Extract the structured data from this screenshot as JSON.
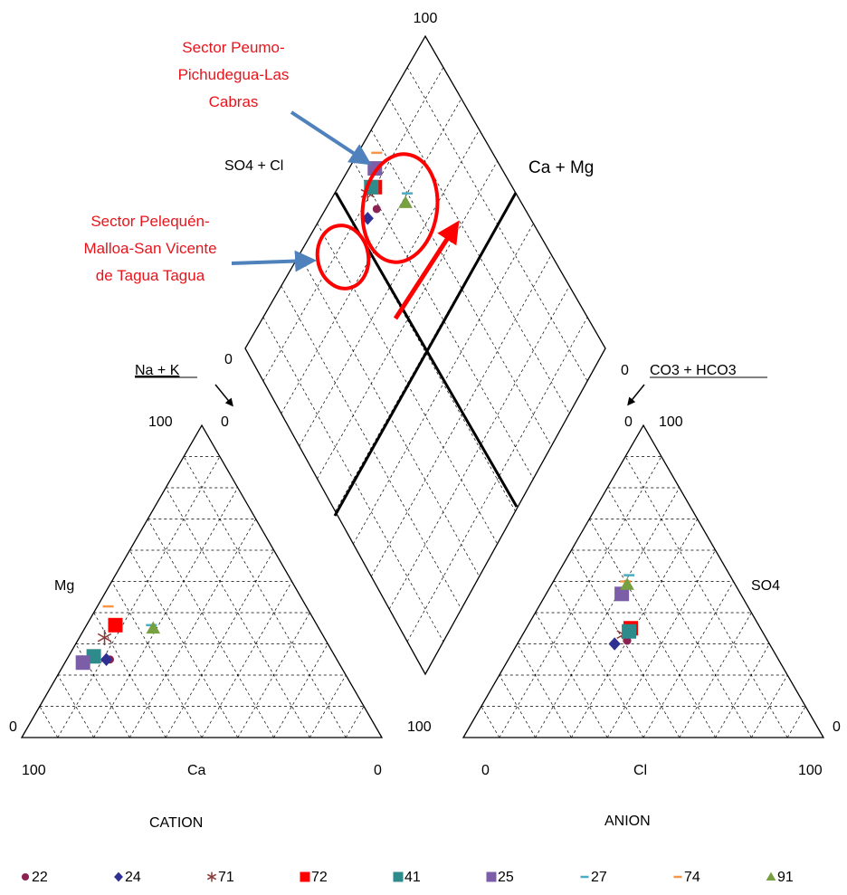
{
  "annotations": {
    "sector1": [
      "Sector Peumo-",
      "Pichudegua-Las",
      "Cabras"
    ],
    "sector2": [
      "Sector Pelequén-",
      "Malloa-San Vicente",
      "de Tagua Tagua"
    ]
  },
  "labels": {
    "top_100": "100",
    "so4_cl": "SO4 + Cl",
    "ca_mg": "Ca + Mg",
    "left_0": "0",
    "right_0": "0",
    "na_k": "Na + K",
    "co3_hco3": "CO3 + HCO3",
    "cat_100": "100",
    "cat_0_top": "0",
    "mg": "Mg",
    "cat_0_left": "0",
    "cat_100_right": "100",
    "cat_bottom_100": "100",
    "ca": "Ca",
    "cat_bottom_0": "0",
    "cation": "CATION",
    "an_0_top": "0",
    "an_100_top": "100",
    "so4": "SO4",
    "an_0_right": "0",
    "an_bottom_0": "0",
    "cl": "Cl",
    "an_bottom_100": "100",
    "anion": "ANION"
  },
  "chart_data": {
    "type": "scatter",
    "title": "",
    "diagram": "Piper trilinear diagram",
    "axes": {
      "cation_triangle": [
        "Ca",
        "Mg",
        "Na + K"
      ],
      "anion_triangle": [
        "Cl",
        "SO4",
        "CO3 + HCO3"
      ],
      "diamond": [
        "SO4 + Cl",
        "Ca + Mg"
      ]
    },
    "series": [
      {
        "name": "22",
        "marker": "circle",
        "color": "#8b2252",
        "cation": {
          "Ca": 63,
          "Mg": 25
        },
        "anion": {
          "Cl": 30,
          "SO4": 31
        },
        "diamond": {
          "SO4 + Cl": 61,
          "Ca + Mg": 88
        }
      },
      {
        "name": "24",
        "marker": "diamond",
        "color": "#2e3192",
        "cation": {
          "Ca": 64,
          "Mg": 25
        },
        "anion": {
          "Cl": 27,
          "SO4": 30
        },
        "diamond": {
          "SO4 + Cl": 57,
          "Ca + Mg": 89
        }
      },
      {
        "name": "71",
        "marker": "asterisk",
        "color": "#8b3a3a",
        "cation": {
          "Ca": 61,
          "Mg": 32
        },
        "anion": {
          "Cl": 28,
          "SO4": 33
        },
        "diamond": {
          "SO4 + Cl": 61,
          "Ca + Mg": 93
        }
      },
      {
        "name": "72",
        "marker": "square",
        "color": "#ff0000",
        "cation": {
          "Ca": 56,
          "Mg": 36
        },
        "anion": {
          "Cl": 29,
          "SO4": 35
        },
        "diamond": {
          "SO4 + Cl": 64,
          "Ca + Mg": 92
        }
      },
      {
        "name": "41",
        "marker": "square",
        "color": "#2e8b8b",
        "cation": {
          "Ca": 67,
          "Mg": 26
        },
        "anion": {
          "Cl": 29,
          "SO4": 34
        },
        "diamond": {
          "SO4 + Cl": 63,
          "Ca + Mg": 93
        }
      },
      {
        "name": "25",
        "marker": "square",
        "color": "#7b5ea7",
        "cation": {
          "Ca": 71,
          "Mg": 24
        },
        "anion": {
          "Cl": 21,
          "SO4": 46
        },
        "diamond": {
          "SO4 + Cl": 67,
          "Ca + Mg": 95
        }
      },
      {
        "name": "27",
        "marker": "dash",
        "color": "#4bacc6",
        "cation": {
          "Ca": 46,
          "Mg": 36
        },
        "anion": {
          "Cl": 20,
          "SO4": 52
        },
        "diamond": {
          "SO4 + Cl": 72,
          "Ca + Mg": 82
        }
      },
      {
        "name": "74",
        "marker": "dash",
        "color": "#f79646",
        "cation": {
          "Ca": 55,
          "Mg": 42
        },
        "anion": {
          "Cl": 20,
          "SO4": 50
        },
        "diamond": {
          "SO4 + Cl": 70,
          "Ca + Mg": 97
        }
      },
      {
        "name": "91",
        "marker": "triangle",
        "color": "#77a040",
        "cation": {
          "Ca": 46,
          "Mg": 35
        },
        "anion": {
          "Cl": 21,
          "SO4": 49
        },
        "diamond": {
          "SO4 + Cl": 70,
          "Ca + Mg": 81
        }
      }
    ]
  }
}
